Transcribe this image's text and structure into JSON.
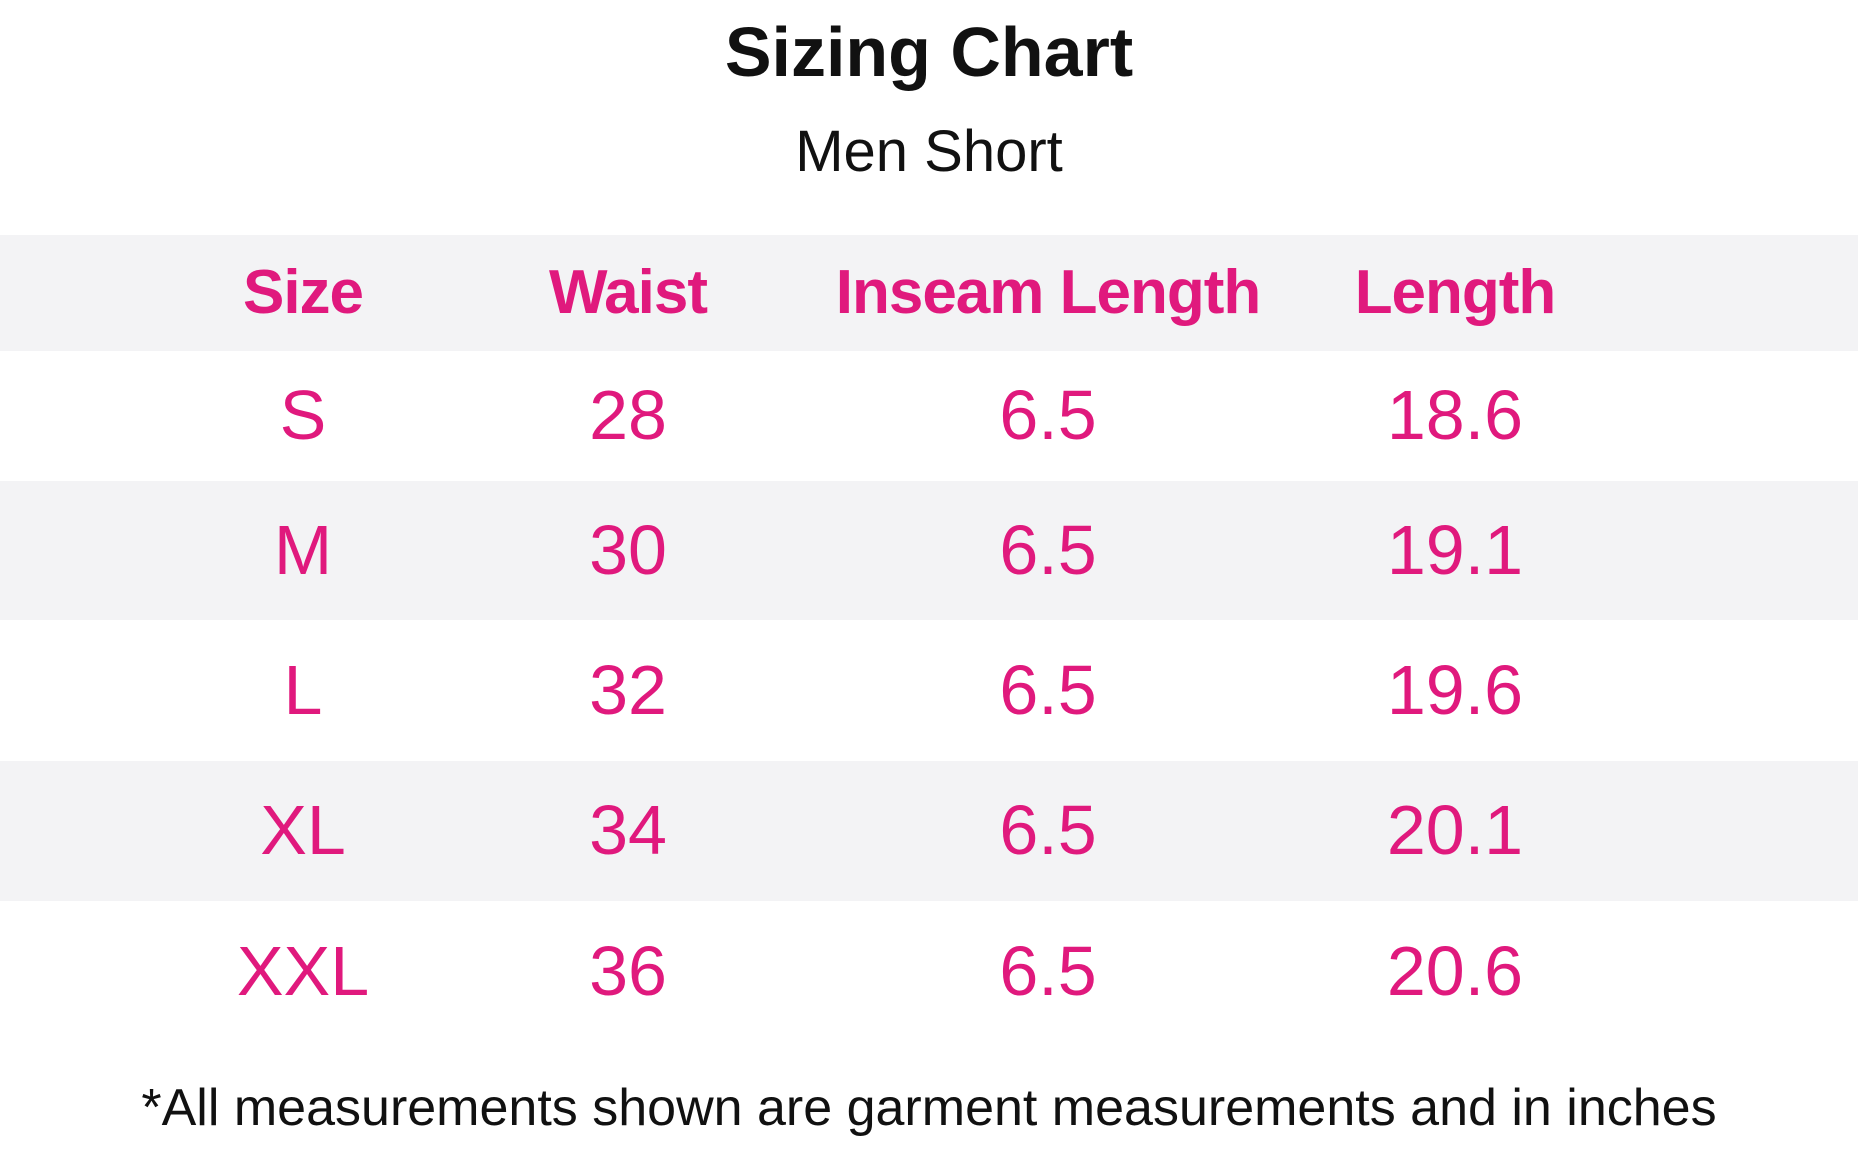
{
  "title": "Sizing Chart",
  "subtitle": "Men Short",
  "table": {
    "header": [
      "Size",
      "Waist",
      "Inseam Length",
      "Length"
    ],
    "rows": [
      [
        "S",
        28,
        6.5,
        18.6
      ],
      [
        "M",
        30,
        6.5,
        19.1
      ],
      [
        "L",
        32,
        6.5,
        19.6
      ],
      [
        "XL",
        34,
        6.5,
        20.1
      ],
      [
        "XXL",
        36,
        6.5,
        20.6
      ]
    ]
  },
  "footnote": "*All measurements shown are garment measurements and in inches"
}
